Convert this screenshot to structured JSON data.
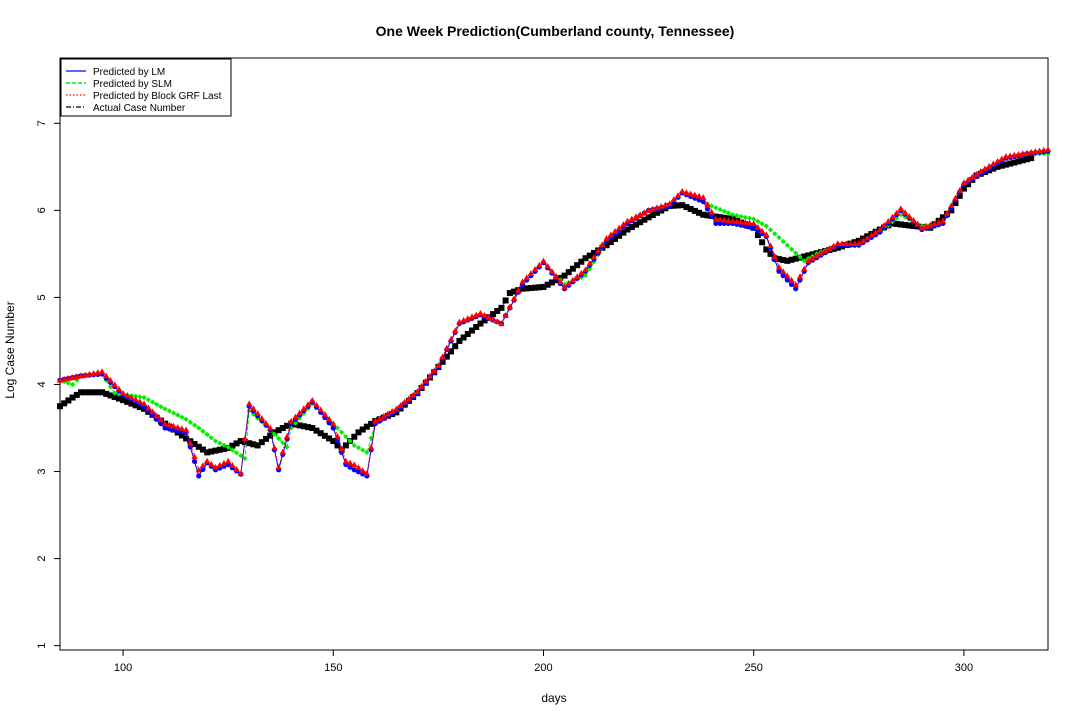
{
  "chart_data": {
    "type": "line",
    "title": "One Week Prediction(Cumberland county, Tennessee)",
    "xlabel": "days",
    "ylabel": "Log Case Number",
    "xlim": [
      85,
      320
    ],
    "ylim": [
      0.95,
      7.75
    ],
    "xticks": [
      "100",
      "150",
      "200",
      "250",
      "300"
    ],
    "yticks": [
      "1",
      "2",
      "3",
      "4",
      "5",
      "6",
      "7"
    ],
    "legend_position": "top-left",
    "legend": [
      "Predicted by LM",
      "Predicted by SLM",
      "Predicted by Block GRF Last",
      "Actual Case Number"
    ],
    "colors": {
      "lm": "#0000ff",
      "slm": "#00ee00",
      "grf": "#ff0000",
      "actual": "#000000"
    },
    "series": [
      {
        "name": "Actual Case Number",
        "points": [
          [
            85,
            3.75
          ],
          [
            88,
            3.85
          ],
          [
            90,
            3.91
          ],
          [
            95,
            3.91
          ],
          [
            100,
            3.82
          ],
          [
            105,
            3.72
          ],
          [
            110,
            3.55
          ],
          [
            115,
            3.38
          ],
          [
            120,
            3.22
          ],
          [
            125,
            3.27
          ],
          [
            128,
            3.35
          ],
          [
            132,
            3.3
          ],
          [
            136,
            3.45
          ],
          [
            140,
            3.55
          ],
          [
            145,
            3.5
          ],
          [
            150,
            3.35
          ],
          [
            152,
            3.25
          ],
          [
            156,
            3.45
          ],
          [
            160,
            3.58
          ],
          [
            165,
            3.68
          ],
          [
            170,
            3.9
          ],
          [
            175,
            4.2
          ],
          [
            180,
            4.5
          ],
          [
            185,
            4.7
          ],
          [
            190,
            4.88
          ],
          [
            192,
            5.05
          ],
          [
            195,
            5.1
          ],
          [
            200,
            5.12
          ],
          [
            205,
            5.25
          ],
          [
            210,
            5.45
          ],
          [
            215,
            5.6
          ],
          [
            220,
            5.78
          ],
          [
            225,
            5.92
          ],
          [
            230,
            6.05
          ],
          [
            233,
            6.06
          ],
          [
            238,
            5.95
          ],
          [
            245,
            5.9
          ],
          [
            250,
            5.8
          ],
          [
            253,
            5.55
          ],
          [
            255,
            5.45
          ],
          [
            258,
            5.42
          ],
          [
            262,
            5.47
          ],
          [
            270,
            5.57
          ],
          [
            275,
            5.65
          ],
          [
            280,
            5.78
          ],
          [
            283,
            5.85
          ],
          [
            288,
            5.82
          ],
          [
            292,
            5.8
          ],
          [
            297,
            6.0
          ],
          [
            300,
            6.25
          ],
          [
            303,
            6.4
          ],
          [
            308,
            6.5
          ],
          [
            316,
            6.6
          ]
        ]
      },
      {
        "name": "Predicted by SLM",
        "points": [
          [
            85,
            4.05
          ],
          [
            88,
            4.0
          ],
          [
            90,
            4.1
          ],
          [
            95,
            4.12
          ],
          [
            98,
            3.9
          ],
          [
            105,
            3.85
          ],
          [
            110,
            3.72
          ],
          [
            115,
            3.6
          ],
          [
            118,
            3.5
          ],
          [
            122,
            3.35
          ],
          [
            125,
            3.28
          ],
          [
            129,
            3.15
          ],
          [
            130,
            3.7
          ],
          [
            135,
            3.48
          ],
          [
            139,
            3.28
          ],
          [
            140,
            3.5
          ],
          [
            145,
            3.78
          ],
          [
            150,
            3.55
          ],
          [
            155,
            3.3
          ],
          [
            158,
            3.22
          ],
          [
            160,
            3.55
          ],
          [
            165,
            3.7
          ],
          [
            170,
            3.9
          ],
          [
            175,
            4.2
          ],
          [
            180,
            4.7
          ],
          [
            185,
            4.8
          ],
          [
            190,
            4.7
          ],
          [
            195,
            5.15
          ],
          [
            200,
            5.4
          ],
          [
            205,
            5.15
          ],
          [
            210,
            5.25
          ],
          [
            215,
            5.65
          ],
          [
            220,
            5.85
          ],
          [
            225,
            6.0
          ],
          [
            230,
            6.05
          ],
          [
            233,
            6.2
          ],
          [
            238,
            6.1
          ],
          [
            240,
            6.05
          ],
          [
            245,
            5.95
          ],
          [
            250,
            5.9
          ],
          [
            253,
            5.82
          ],
          [
            258,
            5.6
          ],
          [
            262,
            5.42
          ],
          [
            265,
            5.5
          ],
          [
            270,
            5.6
          ],
          [
            275,
            5.6
          ],
          [
            280,
            5.75
          ],
          [
            285,
            5.95
          ],
          [
            290,
            5.82
          ],
          [
            295,
            5.85
          ],
          [
            300,
            6.3
          ],
          [
            305,
            6.45
          ],
          [
            310,
            6.6
          ],
          [
            315,
            6.65
          ],
          [
            320,
            6.65
          ]
        ]
      },
      {
        "name": "Predicted by LM",
        "points": [
          [
            85,
            4.05
          ],
          [
            90,
            4.1
          ],
          [
            95,
            4.12
          ],
          [
            100,
            3.88
          ],
          [
            105,
            3.75
          ],
          [
            110,
            3.5
          ],
          [
            115,
            3.45
          ],
          [
            118,
            2.95
          ],
          [
            120,
            3.1
          ],
          [
            122,
            3.02
          ],
          [
            125,
            3.08
          ],
          [
            128,
            2.97
          ],
          [
            130,
            3.75
          ],
          [
            135,
            3.48
          ],
          [
            137,
            3.02
          ],
          [
            140,
            3.55
          ],
          [
            145,
            3.8
          ],
          [
            150,
            3.5
          ],
          [
            153,
            3.08
          ],
          [
            155,
            3.02
          ],
          [
            158,
            2.95
          ],
          [
            160,
            3.55
          ],
          [
            165,
            3.7
          ],
          [
            170,
            3.9
          ],
          [
            175,
            4.2
          ],
          [
            180,
            4.7
          ],
          [
            185,
            4.8
          ],
          [
            190,
            4.7
          ],
          [
            195,
            5.15
          ],
          [
            200,
            5.4
          ],
          [
            205,
            5.1
          ],
          [
            210,
            5.3
          ],
          [
            215,
            5.65
          ],
          [
            220,
            5.85
          ],
          [
            225,
            6.0
          ],
          [
            230,
            6.05
          ],
          [
            233,
            6.2
          ],
          [
            238,
            6.1
          ],
          [
            241,
            5.85
          ],
          [
            245,
            5.85
          ],
          [
            250,
            5.8
          ],
          [
            253,
            5.7
          ],
          [
            256,
            5.3
          ],
          [
            260,
            5.1
          ],
          [
            263,
            5.4
          ],
          [
            270,
            5.6
          ],
          [
            275,
            5.6
          ],
          [
            280,
            5.75
          ],
          [
            285,
            6.0
          ],
          [
            290,
            5.78
          ],
          [
            295,
            5.85
          ],
          [
            300,
            6.3
          ],
          [
            305,
            6.45
          ],
          [
            310,
            6.6
          ],
          [
            315,
            6.65
          ],
          [
            320,
            6.68
          ]
        ]
      },
      {
        "name": "Predicted by Block GRF Last",
        "points": [
          [
            85,
            4.05
          ],
          [
            90,
            4.1
          ],
          [
            95,
            4.15
          ],
          [
            100,
            3.9
          ],
          [
            105,
            3.78
          ],
          [
            110,
            3.55
          ],
          [
            115,
            3.48
          ],
          [
            118,
            3.02
          ],
          [
            120,
            3.12
          ],
          [
            122,
            3.05
          ],
          [
            125,
            3.12
          ],
          [
            128,
            2.98
          ],
          [
            130,
            3.78
          ],
          [
            135,
            3.5
          ],
          [
            137,
            3.05
          ],
          [
            140,
            3.58
          ],
          [
            145,
            3.82
          ],
          [
            150,
            3.55
          ],
          [
            153,
            3.12
          ],
          [
            155,
            3.08
          ],
          [
            158,
            2.98
          ],
          [
            160,
            3.58
          ],
          [
            165,
            3.72
          ],
          [
            170,
            3.92
          ],
          [
            175,
            4.22
          ],
          [
            180,
            4.72
          ],
          [
            185,
            4.82
          ],
          [
            190,
            4.7
          ],
          [
            195,
            5.18
          ],
          [
            200,
            5.42
          ],
          [
            205,
            5.12
          ],
          [
            210,
            5.32
          ],
          [
            215,
            5.68
          ],
          [
            220,
            5.88
          ],
          [
            225,
            6.0
          ],
          [
            230,
            6.08
          ],
          [
            233,
            6.22
          ],
          [
            238,
            6.15
          ],
          [
            241,
            5.9
          ],
          [
            245,
            5.88
          ],
          [
            250,
            5.85
          ],
          [
            253,
            5.72
          ],
          [
            256,
            5.35
          ],
          [
            260,
            5.15
          ],
          [
            263,
            5.42
          ],
          [
            270,
            5.62
          ],
          [
            275,
            5.62
          ],
          [
            280,
            5.78
          ],
          [
            285,
            6.02
          ],
          [
            290,
            5.8
          ],
          [
            295,
            5.88
          ],
          [
            300,
            6.32
          ],
          [
            305,
            6.48
          ],
          [
            310,
            6.62
          ],
          [
            315,
            6.66
          ],
          [
            320,
            6.7
          ]
        ]
      }
    ]
  }
}
